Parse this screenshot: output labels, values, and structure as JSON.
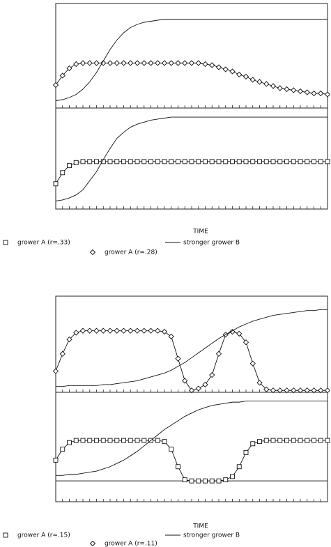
{
  "chart_data": [
    {
      "type": "line",
      "xlim": [
        0,
        40
      ],
      "ylim": [
        0,
        1
      ],
      "x": [
        0,
        1,
        2,
        3,
        4,
        5,
        6,
        7,
        8,
        9,
        10,
        11,
        12,
        13,
        14,
        15,
        16,
        17,
        18,
        19,
        20,
        21,
        22,
        23,
        24,
        25,
        26,
        27,
        28,
        29,
        30,
        31,
        32,
        33,
        34,
        35,
        36,
        37,
        38,
        39,
        40
      ],
      "series": [
        {
          "name": "grower A (r=.28)",
          "marker": "diamond",
          "color": "#111",
          "values": [
            0.22,
            0.31,
            0.38,
            0.42,
            0.43,
            0.43,
            0.43,
            0.43,
            0.43,
            0.43,
            0.43,
            0.43,
            0.43,
            0.43,
            0.43,
            0.43,
            0.43,
            0.43,
            0.43,
            0.43,
            0.43,
            0.43,
            0.42,
            0.41,
            0.39,
            0.37,
            0.35,
            0.32,
            0.3,
            0.27,
            0.25,
            0.23,
            0.21,
            0.19,
            0.18,
            0.17,
            0.16,
            0.15,
            0.14,
            0.14,
            0.13
          ]
        },
        {
          "marker": "none",
          "color": "#111",
          "values": [
            0.07,
            0.08,
            0.1,
            0.13,
            0.18,
            0.25,
            0.34,
            0.45,
            0.56,
            0.65,
            0.72,
            0.77,
            0.8,
            0.82,
            0.83,
            0.84,
            0.85,
            0.85,
            0.85,
            0.85,
            0.85,
            0.85,
            0.85,
            0.85,
            0.85,
            0.85,
            0.85,
            0.85,
            0.85,
            0.85,
            0.85,
            0.85,
            0.85,
            0.85,
            0.85,
            0.85,
            0.85,
            0.85,
            0.85,
            0.85,
            0.85
          ]
        }
      ]
    },
    {
      "type": "line",
      "xlim": [
        0,
        40
      ],
      "ylim": [
        0,
        1
      ],
      "xlabel": "TIME",
      "x": [
        0,
        1,
        2,
        3,
        4,
        5,
        6,
        7,
        8,
        9,
        10,
        11,
        12,
        13,
        14,
        15,
        16,
        17,
        18,
        19,
        20,
        21,
        22,
        23,
        24,
        25,
        26,
        27,
        28,
        29,
        30,
        31,
        32,
        33,
        34,
        35,
        36,
        37,
        38,
        39,
        40
      ],
      "series": [
        {
          "name": "grower A (r=.33)",
          "marker": "square",
          "color": "#111",
          "values": [
            0.25,
            0.36,
            0.43,
            0.46,
            0.47,
            0.47,
            0.47,
            0.47,
            0.47,
            0.47,
            0.47,
            0.47,
            0.47,
            0.47,
            0.47,
            0.47,
            0.47,
            0.47,
            0.47,
            0.47,
            0.47,
            0.47,
            0.47,
            0.47,
            0.47,
            0.47,
            0.47,
            0.47,
            0.47,
            0.47,
            0.47,
            0.47,
            0.47,
            0.47,
            0.47,
            0.47,
            0.47,
            0.47,
            0.47,
            0.47,
            0.47
          ]
        },
        {
          "name": "stronger grower B",
          "marker": "none",
          "color": "#111",
          "values": [
            0.08,
            0.09,
            0.11,
            0.14,
            0.19,
            0.28,
            0.37,
            0.49,
            0.6,
            0.7,
            0.76,
            0.81,
            0.84,
            0.86,
            0.88,
            0.89,
            0.9,
            0.91,
            0.91,
            0.91,
            0.91,
            0.91,
            0.91,
            0.91,
            0.91,
            0.91,
            0.91,
            0.91,
            0.91,
            0.91,
            0.91,
            0.91,
            0.91,
            0.91,
            0.91,
            0.91,
            0.91,
            0.91,
            0.91,
            0.91,
            0.91
          ]
        }
      ]
    },
    {
      "type": "line",
      "xlim": [
        0,
        40
      ],
      "ylim": [
        0,
        1
      ],
      "x": [
        0,
        1,
        2,
        3,
        4,
        5,
        6,
        7,
        8,
        9,
        10,
        11,
        12,
        13,
        14,
        15,
        16,
        17,
        18,
        19,
        20,
        21,
        22,
        23,
        24,
        25,
        26,
        27,
        28,
        29,
        30,
        31,
        32,
        33,
        34,
        35,
        36,
        37,
        38,
        39,
        40
      ],
      "series": [
        {
          "name": "grower A (r=.11)",
          "marker": "diamond",
          "color": "#111",
          "values": [
            0.22,
            0.4,
            0.55,
            0.62,
            0.64,
            0.64,
            0.64,
            0.64,
            0.64,
            0.64,
            0.64,
            0.64,
            0.64,
            0.64,
            0.64,
            0.64,
            0.63,
            0.58,
            0.35,
            0.12,
            0.02,
            0.04,
            0.08,
            0.18,
            0.4,
            0.6,
            0.63,
            0.61,
            0.52,
            0.3,
            0.1,
            0.03,
            0.02,
            0.02,
            0.02,
            0.02,
            0.02,
            0.02,
            0.02,
            0.02,
            0.02
          ]
        },
        {
          "marker": "none",
          "color": "#111",
          "values": [
            0.06,
            0.06,
            0.07,
            0.07,
            0.07,
            0.07,
            0.07,
            0.08,
            0.08,
            0.09,
            0.1,
            0.11,
            0.12,
            0.14,
            0.16,
            0.18,
            0.2,
            0.23,
            0.27,
            0.31,
            0.36,
            0.41,
            0.46,
            0.51,
            0.56,
            0.6,
            0.64,
            0.68,
            0.71,
            0.74,
            0.76,
            0.78,
            0.8,
            0.81,
            0.82,
            0.83,
            0.84,
            0.85,
            0.85,
            0.86,
            0.86
          ]
        }
      ]
    },
    {
      "type": "line",
      "xlim": [
        0,
        40
      ],
      "ylim": [
        0,
        1
      ],
      "xlabel": "TIME",
      "hline": 0.19,
      "x": [
        0,
        1,
        2,
        3,
        4,
        5,
        6,
        7,
        8,
        9,
        10,
        11,
        12,
        13,
        14,
        15,
        16,
        17,
        18,
        19,
        20,
        21,
        22,
        23,
        24,
        25,
        26,
        27,
        28,
        29,
        30,
        31,
        32,
        33,
        34,
        35,
        36,
        37,
        38,
        39,
        40
      ],
      "series": [
        {
          "name": "grower A (r=.15)",
          "marker": "square",
          "color": "#111",
          "values": [
            0.38,
            0.48,
            0.54,
            0.56,
            0.56,
            0.56,
            0.56,
            0.56,
            0.56,
            0.56,
            0.56,
            0.56,
            0.56,
            0.56,
            0.56,
            0.56,
            0.55,
            0.48,
            0.32,
            0.2,
            0.19,
            0.19,
            0.19,
            0.19,
            0.19,
            0.2,
            0.23,
            0.32,
            0.45,
            0.53,
            0.55,
            0.56,
            0.56,
            0.56,
            0.56,
            0.56,
            0.56,
            0.56,
            0.56,
            0.56,
            0.56
          ]
        },
        {
          "name": "stronger grower B",
          "marker": "none",
          "color": "#111",
          "values": [
            0.24,
            0.24,
            0.25,
            0.25,
            0.26,
            0.27,
            0.28,
            0.3,
            0.32,
            0.35,
            0.38,
            0.42,
            0.46,
            0.51,
            0.56,
            0.61,
            0.66,
            0.7,
            0.74,
            0.78,
            0.81,
            0.84,
            0.86,
            0.88,
            0.89,
            0.9,
            0.91,
            0.91,
            0.92,
            0.92,
            0.92,
            0.92,
            0.92,
            0.92,
            0.92,
            0.92,
            0.92,
            0.92,
            0.92,
            0.92,
            0.92
          ]
        }
      ]
    }
  ]
}
